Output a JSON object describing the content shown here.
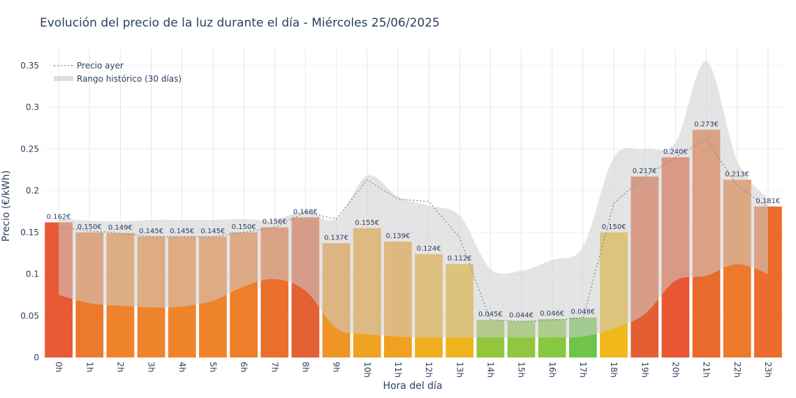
{
  "chart_data": {
    "type": "bar",
    "title": "Evolución del precio de la luz durante el día - Miércoles 25/06/2025",
    "xlabel": "Hora del día",
    "ylabel": "Precio (€/kWh)",
    "ylim": [
      0,
      0.37
    ],
    "yticks": [
      0,
      0.05,
      0.1,
      0.15,
      0.2,
      0.25,
      0.3,
      0.35
    ],
    "ytick_labels": [
      "0",
      "0.05",
      "0.1",
      "0.15",
      "0.2",
      "0.25",
      "0.3",
      "0.35"
    ],
    "categories": [
      "0h",
      "1h",
      "2h",
      "3h",
      "4h",
      "5h",
      "6h",
      "7h",
      "8h",
      "9h",
      "10h",
      "11h",
      "12h",
      "13h",
      "14h",
      "15h",
      "16h",
      "17h",
      "18h",
      "19h",
      "20h",
      "21h",
      "22h",
      "23h"
    ],
    "values": [
      0.162,
      0.15,
      0.149,
      0.145,
      0.145,
      0.145,
      0.15,
      0.156,
      0.168,
      0.137,
      0.155,
      0.139,
      0.124,
      0.112,
      0.045,
      0.044,
      0.046,
      0.048,
      0.15,
      0.217,
      0.24,
      0.273,
      0.213,
      0.181
    ],
    "value_labels": [
      "0.162€",
      "0.150€",
      "0.149€",
      "0.145€",
      "0.145€",
      "0.145€",
      "0.150€",
      "0.156€",
      "0.168€",
      "0.137€",
      "0.155€",
      "0.139€",
      "0.124€",
      "0.112€",
      "0.045€",
      "0.044€",
      "0.046€",
      "0.048€",
      "0.150€",
      "0.217€",
      "0.240€",
      "0.273€",
      "0.213€",
      "0.181€"
    ],
    "bar_colors": [
      "#e85a35",
      "#ec7a2c",
      "#ee832b",
      "#ef842b",
      "#ef842b",
      "#ef842b",
      "#ed7f2a",
      "#ea6f2d",
      "#e36133",
      "#ef9526",
      "#f0a224",
      "#f0a022",
      "#f0ae1f",
      "#eeb41c",
      "#92c63d",
      "#90c73e",
      "#86c93f",
      "#6fc547",
      "#f0b81a",
      "#e35f33",
      "#e85732",
      "#e86a2c",
      "#ec7a2c",
      "#ec6b2d"
    ],
    "series": [
      {
        "name": "Precio ayer",
        "type": "line",
        "style": "dotted",
        "color": "#8c949c",
        "values": [
          0.156,
          0.152,
          0.149,
          0.145,
          0.145,
          0.145,
          0.15,
          0.156,
          0.174,
          0.166,
          0.213,
          0.19,
          0.187,
          0.144,
          0.045,
          0.043,
          0.045,
          0.047,
          0.185,
          0.217,
          0.24,
          0.262,
          0.206,
          0.18
        ]
      },
      {
        "name": "Rango histórico (30 días)",
        "type": "band",
        "color": "#d3d3d3",
        "upper": [
          0.167,
          0.164,
          0.163,
          0.165,
          0.165,
          0.165,
          0.166,
          0.165,
          0.176,
          0.166,
          0.218,
          0.193,
          0.182,
          0.17,
          0.106,
          0.104,
          0.117,
          0.133,
          0.24,
          0.25,
          0.258,
          0.355,
          0.236,
          0.19
        ],
        "lower": [
          0.075,
          0.065,
          0.062,
          0.06,
          0.061,
          0.068,
          0.085,
          0.094,
          0.08,
          0.035,
          0.028,
          0.025,
          0.024,
          0.024,
          0.024,
          0.024,
          0.024,
          0.025,
          0.035,
          0.052,
          0.092,
          0.098,
          0.112,
          0.1
        ]
      }
    ],
    "legend": {
      "placement": "top-left",
      "items": [
        "Precio ayer",
        "Rango histórico (30 días)"
      ]
    },
    "grid": true
  }
}
